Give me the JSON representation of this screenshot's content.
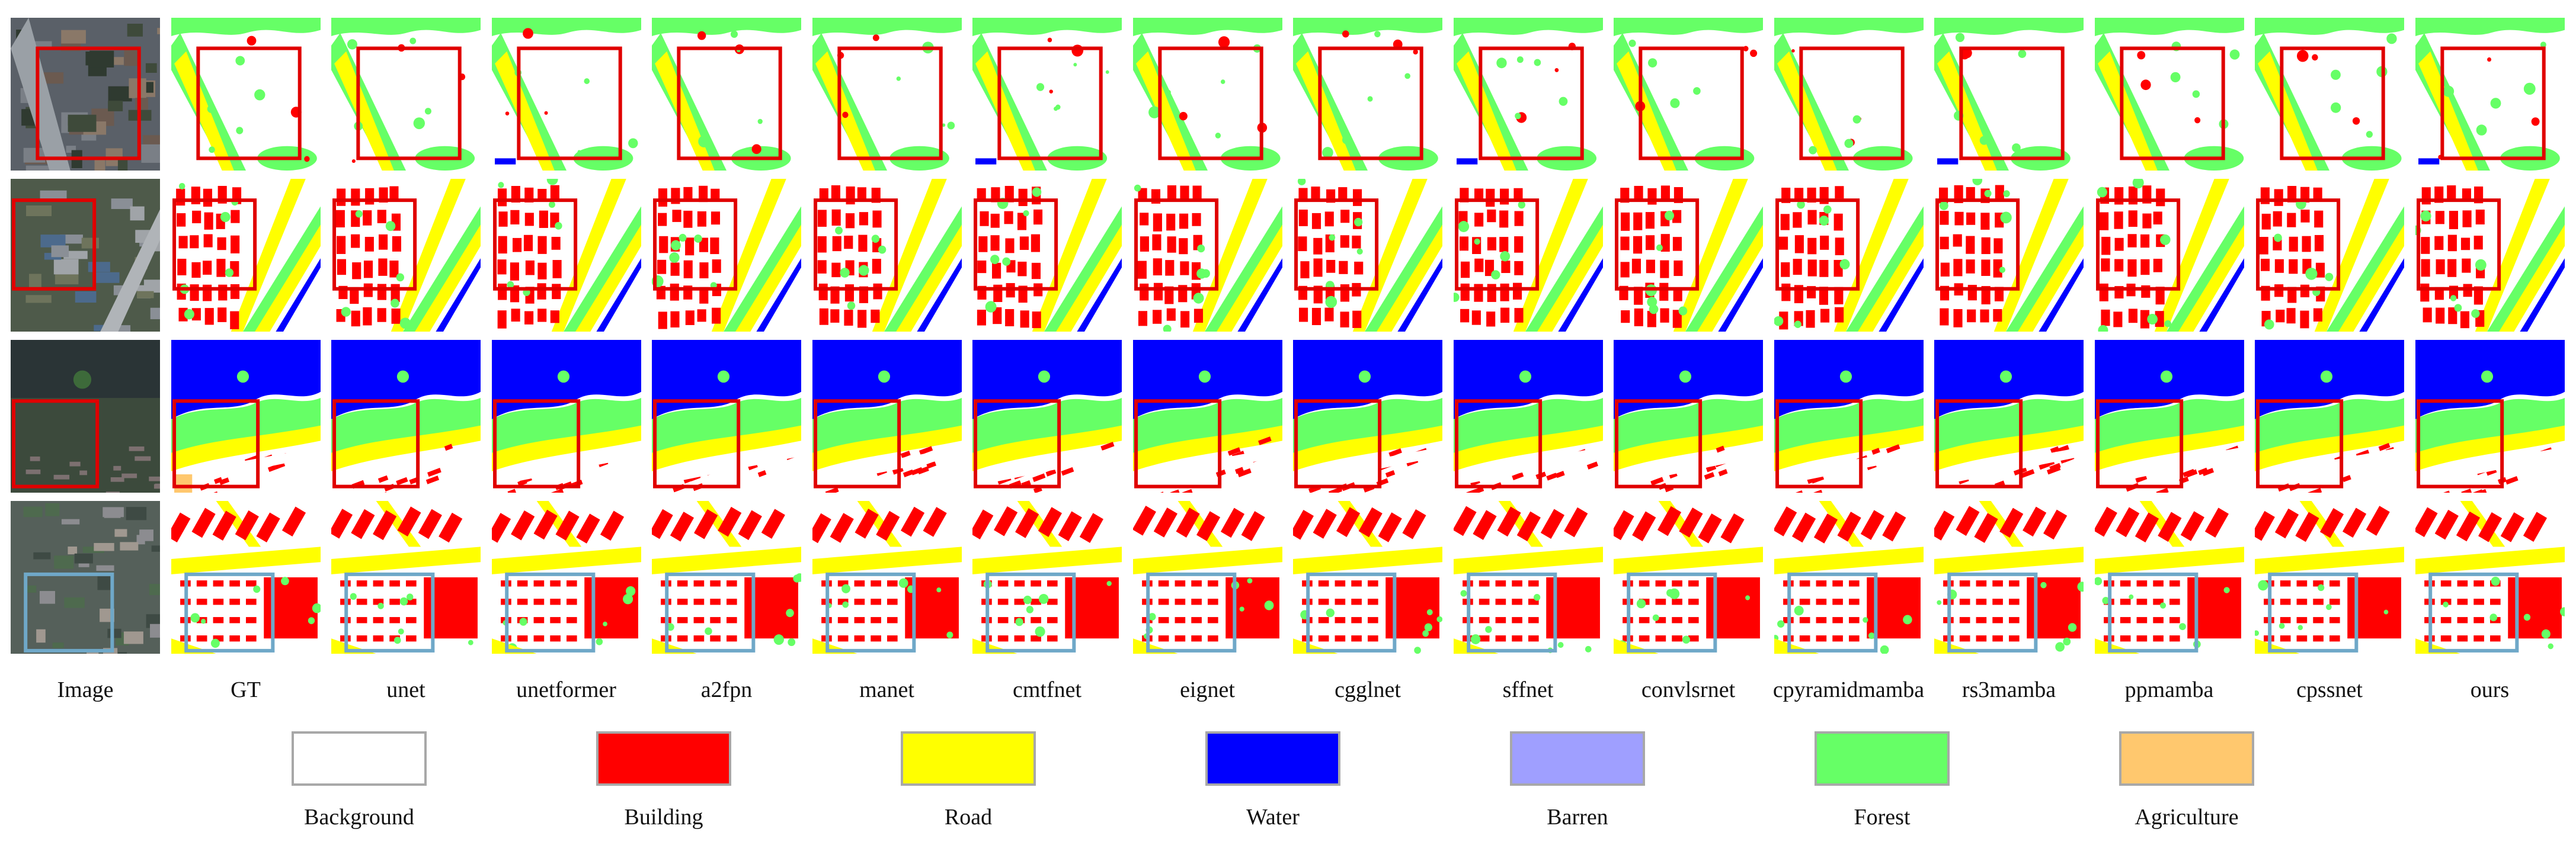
{
  "columns": [
    "Image",
    "GT",
    "unet",
    "unetformer",
    "a2fpn",
    "manet",
    "cmtfnet",
    "eignet",
    "cgglnet",
    "sffnet",
    "convlsrnet",
    "cpyramidmamba",
    "rs3mamba",
    "ppmamba",
    "cpssnet",
    "ours"
  ],
  "legend": [
    {
      "label": "Background",
      "color": "#FFFFFF"
    },
    {
      "label": "Building",
      "color": "#FF0000"
    },
    {
      "label": "Road",
      "color": "#FFFF00"
    },
    {
      "label": "Water",
      "color": "#0000FF"
    },
    {
      "label": "Barren",
      "color": "#9F9FFF"
    },
    {
      "label": "Forest",
      "color": "#66FF66"
    },
    {
      "label": "Agriculture",
      "color": "#FFC86E"
    }
  ],
  "highlight_colors": {
    "red_box": "#E00000",
    "blue_box": "#6FA8C8"
  },
  "icon_names": {
    "rows": "segmentation-map-thumbnails",
    "box": "focus-box"
  }
}
